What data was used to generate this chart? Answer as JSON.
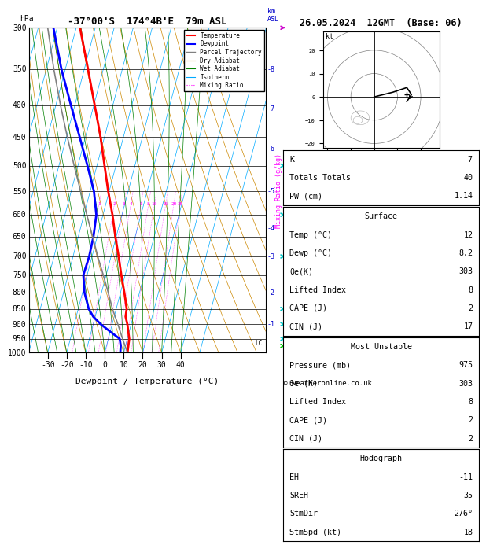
{
  "title_left": "-37°00'S  174°4B'E  79m ASL",
  "title_right": "26.05.2024  12GMT  (Base: 06)",
  "xlabel": "Dewpoint / Temperature (°C)",
  "pressure_levels": [
    300,
    350,
    400,
    450,
    500,
    550,
    600,
    650,
    700,
    750,
    800,
    850,
    900,
    950,
    1000
  ],
  "temp_xticks": [
    -30,
    -20,
    -10,
    0,
    10,
    20,
    30,
    40
  ],
  "background_color": "#ffffff",
  "temp_color": "#ff0000",
  "dewp_color": "#0000ff",
  "parcel_color": "#808080",
  "dry_adiabat_color": "#cc8800",
  "wet_adiabat_color": "#008000",
  "isotherm_color": "#00aaff",
  "mixing_ratio_color": "#ff00ff",
  "temp_profile": {
    "pressure": [
      1000,
      975,
      950,
      925,
      900,
      875,
      850,
      800,
      750,
      700,
      650,
      600,
      550,
      500,
      450,
      400,
      350,
      300
    ],
    "temperature": [
      12.0,
      11.5,
      11.0,
      9.5,
      8.0,
      6.0,
      5.5,
      2.0,
      -2.0,
      -6.0,
      -10.5,
      -15.0,
      -20.5,
      -26.0,
      -32.0,
      -39.5,
      -48.0,
      -58.0
    ]
  },
  "dewp_profile": {
    "pressure": [
      1000,
      975,
      950,
      925,
      900,
      875,
      850,
      800,
      750,
      700,
      650,
      600,
      550,
      500,
      450,
      400,
      350,
      300
    ],
    "dewpoint": [
      8.2,
      7.5,
      6.0,
      0.0,
      -6.0,
      -11.0,
      -14.5,
      -19.0,
      -22.0,
      -21.5,
      -22.0,
      -23.5,
      -28.0,
      -35.0,
      -43.0,
      -52.0,
      -62.0,
      -72.0
    ]
  },
  "parcel_profile": {
    "pressure": [
      1000,
      950,
      900,
      850,
      800,
      750,
      700,
      650,
      600,
      550,
      500,
      450,
      400,
      350,
      300
    ],
    "temperature": [
      12.0,
      7.5,
      3.0,
      -2.0,
      -6.5,
      -11.5,
      -17.0,
      -22.5,
      -28.5,
      -35.0,
      -42.0,
      -49.5,
      -57.5,
      -66.0,
      -75.0
    ]
  },
  "lcl_pressure": 965,
  "km_ticks": {
    "km_values": [
      1,
      2,
      3,
      4,
      5,
      6,
      7,
      8
    ],
    "pressures": [
      900,
      800,
      700,
      630,
      550,
      470,
      405,
      350
    ]
  },
  "mixing_ratio_lines": [
    1,
    2,
    3,
    4,
    6,
    8,
    10,
    15,
    20,
    25
  ],
  "stats": {
    "K": -7,
    "Totals_Totals": 40,
    "PW_cm": 1.14,
    "Surface_Temp": 12,
    "Surface_Dewp": 8.2,
    "Surface_theta_e": 303,
    "Surface_Lifted_Index": 8,
    "Surface_CAPE": 2,
    "Surface_CIN": 17,
    "MU_Pressure": 975,
    "MU_theta_e": 303,
    "MU_Lifted_Index": 8,
    "MU_CAPE": 2,
    "MU_CIN": 2,
    "EH": -11,
    "SREH": 35,
    "StmDir": 276,
    "StmSpd": 18
  },
  "hodo_winds_u": [
    0,
    8,
    14,
    16,
    14
  ],
  "hodo_winds_v": [
    0,
    2,
    4,
    1,
    -2
  ],
  "wind_sym_pressures": [
    300,
    500,
    600,
    700,
    850,
    900,
    950,
    975
  ],
  "wind_sym_colors": [
    "#cc00cc",
    "#00cccc",
    "#00cccc",
    "#00cccc",
    "#00cccc",
    "#00cccc",
    "#00cccc",
    "#00cc00"
  ]
}
